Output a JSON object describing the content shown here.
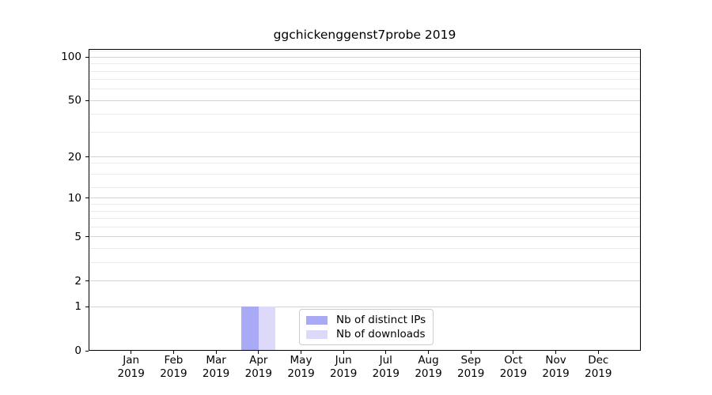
{
  "chart_data": {
    "type": "bar",
    "title": "ggchickenggenst7probe 2019",
    "scale": "symlog (log10 of 1+value)",
    "x": {
      "months": [
        "Jan",
        "Feb",
        "Mar",
        "Apr",
        "May",
        "Jun",
        "Jul",
        "Aug",
        "Sep",
        "Oct",
        "Nov",
        "Dec"
      ],
      "year": "2019"
    },
    "series": [
      {
        "name": "Nb of distinct IPs",
        "color": "#a9a9f5",
        "values": [
          0,
          0,
          0,
          1,
          0,
          0,
          0,
          0,
          0,
          0,
          0,
          0
        ]
      },
      {
        "name": "Nb of downloads",
        "color": "#dcdaf8",
        "values": [
          0,
          0,
          0,
          1,
          0,
          0,
          0,
          0,
          0,
          0,
          0,
          0
        ]
      }
    ],
    "yticks": [
      0,
      1,
      2,
      5,
      10,
      20,
      50,
      100
    ],
    "minor_gridlines": [
      3,
      4,
      6,
      7,
      8,
      9,
      12,
      15,
      18,
      30,
      40,
      60,
      70,
      80,
      90,
      110
    ],
    "ylim": [
      0,
      113
    ],
    "grid": "horizontal-only",
    "legend": {
      "position": "bottom-center-inside",
      "labels": [
        "Nb of distinct IPs",
        "Nb of downloads"
      ]
    },
    "colors": {
      "major_grid": "#d2d2d2",
      "minor_grid": "#ebebeb",
      "axis": "#000000",
      "text": "#000000",
      "background": "#ffffff"
    }
  }
}
